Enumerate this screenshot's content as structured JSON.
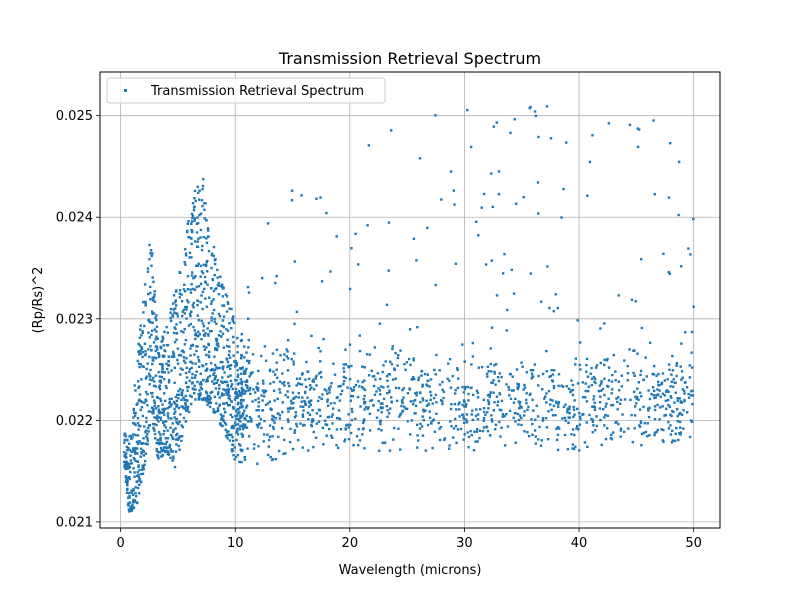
{
  "chart_data": {
    "type": "scatter",
    "title": "Transmission Retrieval Spectrum",
    "xlabel": "Wavelength (microns)",
    "ylabel": "(Rp/Rs)^2",
    "xlim": [
      -1.8,
      52.3
    ],
    "ylim": [
      0.02094,
      0.02543
    ],
    "xticks": [
      0,
      10,
      20,
      30,
      40,
      50
    ],
    "xtick_labels": [
      "0",
      "10",
      "20",
      "30",
      "40",
      "50"
    ],
    "yticks": [
      0.021,
      0.022,
      0.023,
      0.024,
      0.025
    ],
    "ytick_labels": [
      "0.021",
      "0.022",
      "0.023",
      "0.024",
      "0.025"
    ],
    "grid": true,
    "legend_position": "top-left",
    "color": "#1f77b4",
    "series": [
      {
        "name": "Transmission Retrieval Spectrum",
        "x_range": [
          0.3,
          50
        ],
        "profile": [
          {
            "x": 0.3,
            "lower": 0.0216,
            "upper": 0.0219
          },
          {
            "x": 0.7,
            "lower": 0.0211,
            "upper": 0.0218
          },
          {
            "x": 1.0,
            "lower": 0.0211,
            "upper": 0.022
          },
          {
            "x": 1.5,
            "lower": 0.0212,
            "upper": 0.0228
          },
          {
            "x": 2.0,
            "lower": 0.0215,
            "upper": 0.0232
          },
          {
            "x": 2.7,
            "lower": 0.022,
            "upper": 0.024
          },
          {
            "x": 3.3,
            "lower": 0.0216,
            "upper": 0.0227
          },
          {
            "x": 4.0,
            "lower": 0.0217,
            "upper": 0.023
          },
          {
            "x": 4.8,
            "lower": 0.0215,
            "upper": 0.0234
          },
          {
            "x": 5.5,
            "lower": 0.0219,
            "upper": 0.0237
          },
          {
            "x": 6.3,
            "lower": 0.0222,
            "upper": 0.0243
          },
          {
            "x": 7.2,
            "lower": 0.0222,
            "upper": 0.0244
          },
          {
            "x": 8.0,
            "lower": 0.0221,
            "upper": 0.0238
          },
          {
            "x": 9.0,
            "lower": 0.0219,
            "upper": 0.0233
          },
          {
            "x": 10.0,
            "lower": 0.0216,
            "upper": 0.0231
          },
          {
            "x": 11.5,
            "lower": 0.02155,
            "upper": 0.0237
          },
          {
            "x": 13.0,
            "lower": 0.0216,
            "upper": 0.024
          },
          {
            "x": 16.0,
            "lower": 0.0217,
            "upper": 0.0245
          },
          {
            "x": 20.0,
            "lower": 0.0217,
            "upper": 0.025
          },
          {
            "x": 30.0,
            "lower": 0.0217,
            "upper": 0.0251
          },
          {
            "x": 40.0,
            "lower": 0.0217,
            "upper": 0.0251
          },
          {
            "x": 50.0,
            "lower": 0.0218,
            "upper": 0.0249
          }
        ],
        "dense_center": 0.0222,
        "point_count": 2600
      }
    ]
  }
}
